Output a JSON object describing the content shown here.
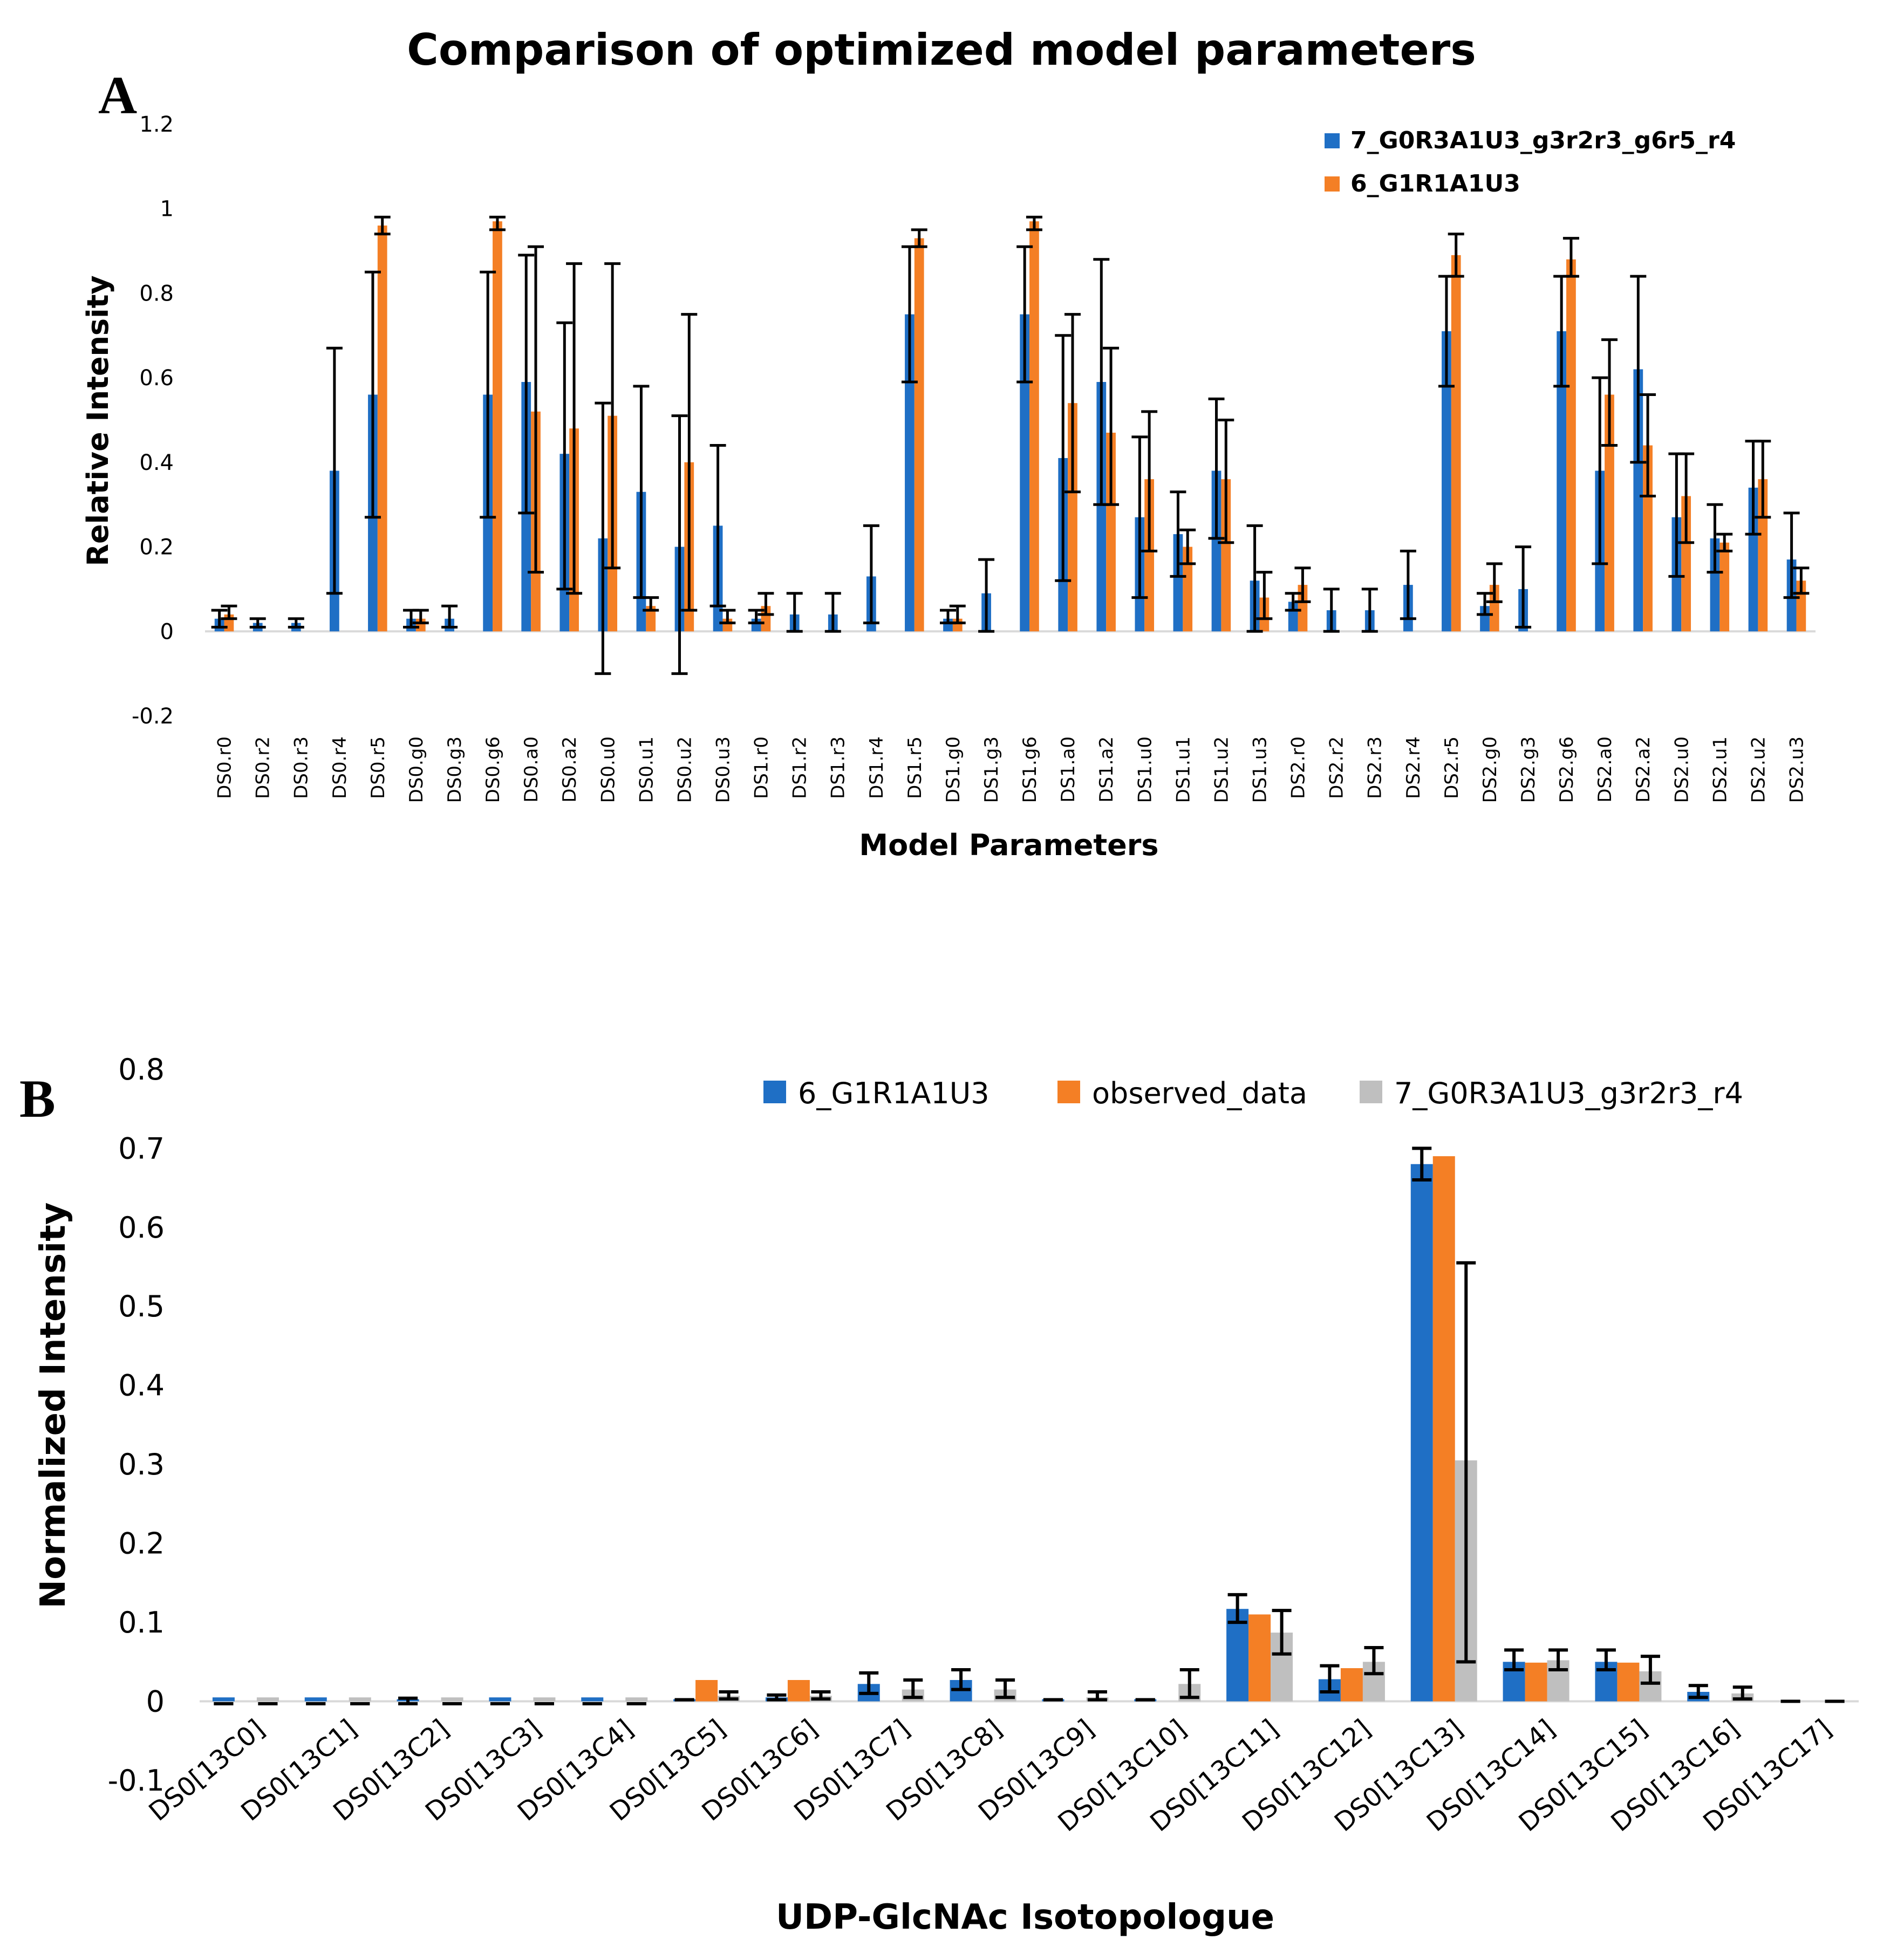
{
  "figure_title": "Comparison of optimized model parameters",
  "chart_data": [
    {
      "panel": "A",
      "type": "bar",
      "xlabel": "Model Parameters",
      "ylabel": "Relative Intensity",
      "ylim": [
        -0.2,
        1.2
      ],
      "yticks": [
        -0.2,
        0,
        0.2,
        0.4,
        0.6,
        0.8,
        1,
        1.2
      ],
      "grid": false,
      "legend_position": "top-right",
      "categories": [
        "DS0.r0",
        "DS0.r2",
        "DS0.r3",
        "DS0.r4",
        "DS0.r5",
        "DS0.g0",
        "DS0.g3",
        "DS0.g6",
        "DS0.a0",
        "DS0.a2",
        "DS0.u0",
        "DS0.u1",
        "DS0.u2",
        "DS0.u3",
        "DS1.r0",
        "DS1.r2",
        "DS1.r3",
        "DS1.r4",
        "DS1.r5",
        "DS1.g0",
        "DS1.g3",
        "DS1.g6",
        "DS1.a0",
        "DS1.a2",
        "DS1.u0",
        "DS1.u1",
        "DS1.u2",
        "DS1.u3",
        "DS2.r0",
        "DS2.r2",
        "DS2.r3",
        "DS2.r4",
        "DS2.r5",
        "DS2.g0",
        "DS2.g3",
        "DS2.g6",
        "DS2.a0",
        "DS2.a2",
        "DS2.u0",
        "DS2.u1",
        "DS2.u2",
        "DS2.u3"
      ],
      "series": [
        {
          "name": "7_G0R3A1U3_g3r2r3_g6r5_r4",
          "color": "#1f6fc5",
          "values": [
            0.03,
            0.02,
            0.02,
            0.38,
            0.56,
            0.03,
            0.03,
            0.56,
            0.59,
            0.42,
            0.22,
            0.33,
            0.2,
            0.25,
            0.03,
            0.04,
            0.04,
            0.13,
            0.75,
            0.03,
            0.09,
            0.75,
            0.41,
            0.59,
            0.27,
            0.23,
            0.38,
            0.12,
            0.07,
            0.05,
            0.05,
            0.11,
            0.71,
            0.06,
            0.1,
            0.71,
            0.38,
            0.62,
            0.27,
            0.22,
            0.34,
            0.17
          ],
          "err_low": [
            0.01,
            0.01,
            0.01,
            0.09,
            0.27,
            0.01,
            0.01,
            0.27,
            0.28,
            0.1,
            -0.1,
            0.08,
            -0.1,
            0.06,
            0.02,
            0,
            0,
            0.02,
            0.59,
            0.02,
            0,
            0.59,
            0.12,
            0.3,
            0.08,
            0.13,
            0.22,
            0,
            0.05,
            0,
            0,
            0.03,
            0.58,
            0.04,
            0.01,
            0.58,
            0.16,
            0.4,
            0.13,
            0.14,
            0.23,
            0.08
          ],
          "err_high": [
            0.05,
            0.03,
            0.03,
            0.67,
            0.85,
            0.05,
            0.06,
            0.85,
            0.89,
            0.73,
            0.54,
            0.58,
            0.51,
            0.44,
            0.05,
            0.09,
            0.09,
            0.25,
            0.91,
            0.05,
            0.17,
            0.91,
            0.7,
            0.88,
            0.46,
            0.33,
            0.55,
            0.25,
            0.09,
            0.1,
            0.1,
            0.19,
            0.84,
            0.09,
            0.2,
            0.84,
            0.6,
            0.84,
            0.42,
            0.3,
            0.45,
            0.28
          ]
        },
        {
          "name": "6_G1R1A1U3",
          "color": "#f47f25",
          "values": [
            0.04,
            null,
            null,
            null,
            0.96,
            0.03,
            null,
            0.97,
            0.52,
            0.48,
            0.51,
            0.06,
            0.4,
            0.03,
            0.06,
            null,
            null,
            null,
            0.93,
            0.03,
            null,
            0.97,
            0.54,
            0.47,
            0.36,
            0.2,
            0.36,
            0.08,
            0.11,
            null,
            null,
            null,
            0.89,
            0.11,
            null,
            0.88,
            0.56,
            0.44,
            0.32,
            0.21,
            0.36,
            0.12
          ],
          "err_low": [
            0.03,
            null,
            null,
            null,
            0.94,
            0.02,
            null,
            0.95,
            0.14,
            0.09,
            0.15,
            0.05,
            0.05,
            0.02,
            0.04,
            null,
            null,
            null,
            0.91,
            0.02,
            null,
            0.95,
            0.33,
            0.3,
            0.19,
            0.16,
            0.21,
            0.03,
            0.07,
            null,
            null,
            null,
            0.84,
            0.07,
            null,
            0.84,
            0.44,
            0.32,
            0.21,
            0.19,
            0.27,
            0.09
          ],
          "err_high": [
            0.06,
            null,
            null,
            null,
            0.98,
            0.05,
            null,
            0.98,
            0.91,
            0.87,
            0.87,
            0.08,
            0.75,
            0.05,
            0.09,
            null,
            null,
            null,
            0.95,
            0.06,
            null,
            0.98,
            0.75,
            0.67,
            0.52,
            0.24,
            0.5,
            0.14,
            0.15,
            null,
            null,
            null,
            0.94,
            0.16,
            null,
            0.93,
            0.69,
            0.56,
            0.42,
            0.23,
            0.45,
            0.15
          ]
        }
      ]
    },
    {
      "panel": "B",
      "type": "bar",
      "xlabel": "UDP-GlcNAc Isotopologue",
      "ylabel": "Normalized Intensity",
      "ylim": [
        -0.1,
        0.8
      ],
      "yticks": [
        -0.1,
        0,
        0.1,
        0.2,
        0.3,
        0.4,
        0.5,
        0.6,
        0.7,
        0.8
      ],
      "grid": false,
      "legend_position": "top-right",
      "categories": [
        "DS0[13C0]",
        "DS0[13C1]",
        "DS0[13C2]",
        "DS0[13C3]",
        "DS0[13C4]",
        "DS0[13C5]",
        "DS0[13C6]",
        "DS0[13C7]",
        "DS0[13C8]",
        "DS0[13C9]",
        "DS0[13C10]",
        "DS0[13C11]",
        "DS0[13C12]",
        "DS0[13C13]",
        "DS0[13C14]",
        "DS0[13C15]",
        "DS0[13C16]",
        "DS0[13C17]"
      ],
      "series": [
        {
          "name": "6_G1R1A1U3",
          "color": "#1f6fc5",
          "values": [
            0.005,
            0.005,
            0.002,
            0.005,
            0.005,
            0.002,
            0.005,
            0.022,
            0.027,
            0.002,
            0.002,
            0.117,
            0.028,
            0.68,
            0.05,
            0.05,
            0.012,
            0
          ],
          "err_low": [
            -0.003,
            -0.003,
            -0.003,
            -0.003,
            -0.003,
            0.002,
            0.002,
            0.01,
            0.015,
            0.002,
            0.002,
            0.1,
            0.012,
            0.66,
            0.04,
            0.04,
            0.005,
            0
          ],
          "err_high": [
            -0.003,
            -0.003,
            0.004,
            -0.003,
            -0.003,
            0.002,
            0.008,
            0.036,
            0.04,
            0.002,
            0.002,
            0.135,
            0.045,
            0.7,
            0.065,
            0.065,
            0.02,
            0
          ]
        },
        {
          "name": "observed_data",
          "color": "#f47f25",
          "values": [
            0,
            0,
            0,
            0,
            0,
            0.027,
            0.027,
            0,
            0,
            0,
            0,
            0.11,
            0.042,
            0.69,
            0.049,
            0.049,
            0,
            0
          ],
          "err_low": [
            null,
            null,
            null,
            null,
            null,
            null,
            null,
            null,
            null,
            null,
            null,
            null,
            null,
            null,
            null,
            null,
            null,
            null
          ],
          "err_high": [
            null,
            null,
            null,
            null,
            null,
            null,
            null,
            null,
            null,
            null,
            null,
            null,
            null,
            null,
            null,
            null,
            null,
            null
          ]
        },
        {
          "name": "7_G0R3A1U3_g3r2r3_r4",
          "color": "#bfbfbf",
          "values": [
            0.005,
            0.005,
            0.005,
            0.005,
            0.005,
            0.007,
            0.007,
            0.015,
            0.015,
            0.005,
            0.022,
            0.087,
            0.05,
            0.305,
            0.052,
            0.038,
            0.01,
            0
          ],
          "err_low": [
            -0.003,
            -0.003,
            -0.003,
            -0.003,
            -0.003,
            0.003,
            0.003,
            0.005,
            0.005,
            0.002,
            0.005,
            0.06,
            0.035,
            0.05,
            0.04,
            0.023,
            0.003,
            0
          ],
          "err_high": [
            -0.003,
            -0.003,
            -0.003,
            -0.003,
            -0.003,
            0.012,
            0.012,
            0.027,
            0.027,
            0.012,
            0.04,
            0.115,
            0.068,
            0.555,
            0.065,
            0.057,
            0.018,
            0
          ]
        }
      ]
    }
  ]
}
